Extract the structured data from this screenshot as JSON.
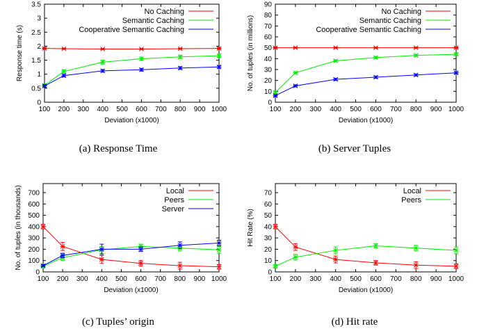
{
  "chart_data": [
    {
      "id": "a",
      "type": "line",
      "caption": "(a) Response Time",
      "xlabel": "Deviation (x1000)",
      "ylabel": "Response time (s)",
      "xlim": [
        100,
        1000
      ],
      "ylim": [
        0,
        3.5
      ],
      "xticks": [
        100,
        200,
        300,
        400,
        500,
        600,
        700,
        800,
        900,
        1000
      ],
      "yticks": [
        0,
        0.5,
        1,
        1.5,
        2,
        2.5,
        3,
        3.5
      ],
      "ytick_labels": [
        "0",
        "0.5",
        "1",
        "1.5",
        "2",
        "2.5",
        "3",
        "3.5"
      ],
      "legend_position": "top-right",
      "grid": false,
      "series": [
        {
          "name": "No Caching",
          "color": "#ff0000",
          "x": [
            100,
            200,
            400,
            600,
            800,
            1000
          ],
          "y": [
            1.92,
            1.91,
            1.9,
            1.9,
            1.91,
            1.92
          ],
          "err": [
            0.02,
            0.02,
            0.02,
            0.02,
            0.02,
            0.02
          ]
        },
        {
          "name": "Semantic Caching",
          "color": "#00ee00",
          "x": [
            100,
            200,
            400,
            600,
            800,
            1000
          ],
          "y": [
            0.6,
            1.1,
            1.43,
            1.55,
            1.62,
            1.66
          ],
          "err": [
            0.05,
            0.06,
            0.07,
            0.06,
            0.06,
            0.06
          ]
        },
        {
          "name": "Cooperative Semantic Caching",
          "color": "#0000ff",
          "x": [
            100,
            200,
            400,
            600,
            800,
            1000
          ],
          "y": [
            0.58,
            0.95,
            1.12,
            1.16,
            1.22,
            1.26
          ],
          "err": [
            0.05,
            0.05,
            0.05,
            0.05,
            0.05,
            0.05
          ]
        }
      ]
    },
    {
      "id": "b",
      "type": "line",
      "caption": "(b) Server Tuples",
      "xlabel": "Deviation (x1000)",
      "ylabel": "No. of tuples (in millions)",
      "xlim": [
        100,
        1000
      ],
      "ylim": [
        0,
        90
      ],
      "xticks": [
        100,
        200,
        300,
        400,
        500,
        600,
        700,
        800,
        900,
        1000
      ],
      "yticks": [
        0,
        10,
        20,
        30,
        40,
        50,
        60,
        70,
        80,
        90
      ],
      "ytick_labels": [
        "0",
        "10",
        "20",
        "30",
        "40",
        "50",
        "60",
        "70",
        "80",
        "90"
      ],
      "legend_position": "top-right",
      "grid": false,
      "series": [
        {
          "name": "No Caching",
          "color": "#ff0000",
          "x": [
            100,
            200,
            400,
            600,
            800,
            1000
          ],
          "y": [
            50,
            50,
            50,
            50,
            50,
            50
          ],
          "err": [
            0.6,
            0.6,
            0.6,
            0.6,
            0.6,
            0.6
          ]
        },
        {
          "name": "Semantic Caching",
          "color": "#00ee00",
          "x": [
            100,
            200,
            400,
            600,
            800,
            1000
          ],
          "y": [
            9,
            27,
            38,
            41,
            43,
            44
          ],
          "err": [
            1,
            1,
            1,
            1,
            1,
            1
          ]
        },
        {
          "name": "Cooperative Semantic Caching",
          "color": "#0000ff",
          "x": [
            100,
            200,
            400,
            600,
            800,
            1000
          ],
          "y": [
            6,
            15,
            21,
            23,
            25,
            27
          ],
          "err": [
            1,
            1,
            1,
            1,
            1,
            1
          ]
        }
      ]
    },
    {
      "id": "c",
      "type": "line",
      "caption": "(c) Tuples’ origin",
      "xlabel": "Deviation (x1000)",
      "ylabel": "No. of tuples (in thousands)",
      "xlim": [
        100,
        1000
      ],
      "ylim": [
        0,
        780
      ],
      "xticks": [
        100,
        200,
        300,
        400,
        500,
        600,
        700,
        800,
        900,
        1000
      ],
      "yticks": [
        0,
        100,
        200,
        300,
        400,
        500,
        600,
        700
      ],
      "ytick_labels": [
        "0",
        "100",
        "200",
        "300",
        "400",
        "500",
        "600",
        "700"
      ],
      "legend_position": "top-right",
      "grid": false,
      "series": [
        {
          "name": "Local",
          "color": "#ff0000",
          "x": [
            100,
            200,
            400,
            600,
            800,
            1000
          ],
          "y": [
            400,
            225,
            110,
            75,
            55,
            45
          ],
          "err": [
            20,
            35,
            35,
            25,
            30,
            20
          ]
        },
        {
          "name": "Peers",
          "color": "#00ee00",
          "x": [
            100,
            200,
            400,
            600,
            800,
            1000
          ],
          "y": [
            50,
            125,
            195,
            225,
            210,
            195
          ],
          "err": [
            15,
            25,
            30,
            20,
            25,
            30
          ]
        },
        {
          "name": "Server",
          "color": "#0000ff",
          "x": [
            100,
            200,
            400,
            600,
            800,
            1000
          ],
          "y": [
            55,
            145,
            200,
            200,
            235,
            255
          ],
          "err": [
            10,
            20,
            45,
            20,
            30,
            25
          ]
        }
      ]
    },
    {
      "id": "d",
      "type": "line",
      "caption": "(d) Hit rate",
      "xlabel": "Deviation (x1000)",
      "ylabel": "Hit Rate (%)",
      "xlim": [
        100,
        1000
      ],
      "ylim": [
        0,
        78
      ],
      "xticks": [
        100,
        200,
        300,
        400,
        500,
        600,
        700,
        800,
        900,
        1000
      ],
      "yticks": [
        0,
        10,
        20,
        30,
        40,
        50,
        60,
        70
      ],
      "ytick_labels": [
        "0",
        "10",
        "20",
        "30",
        "40",
        "50",
        "60",
        "70"
      ],
      "legend_position": "top-right",
      "grid": false,
      "series": [
        {
          "name": "Local",
          "color": "#ff0000",
          "x": [
            100,
            200,
            400,
            600,
            800,
            1000
          ],
          "y": [
            40,
            22,
            11,
            8,
            6,
            5
          ],
          "err": [
            2,
            3,
            3,
            2,
            3,
            2
          ]
        },
        {
          "name": "Peers",
          "color": "#00ee00",
          "x": [
            100,
            200,
            400,
            600,
            800,
            1000
          ],
          "y": [
            5,
            13,
            19,
            23,
            21,
            19
          ],
          "err": [
            1.5,
            2.5,
            3,
            2,
            2.5,
            3
          ]
        }
      ]
    }
  ]
}
